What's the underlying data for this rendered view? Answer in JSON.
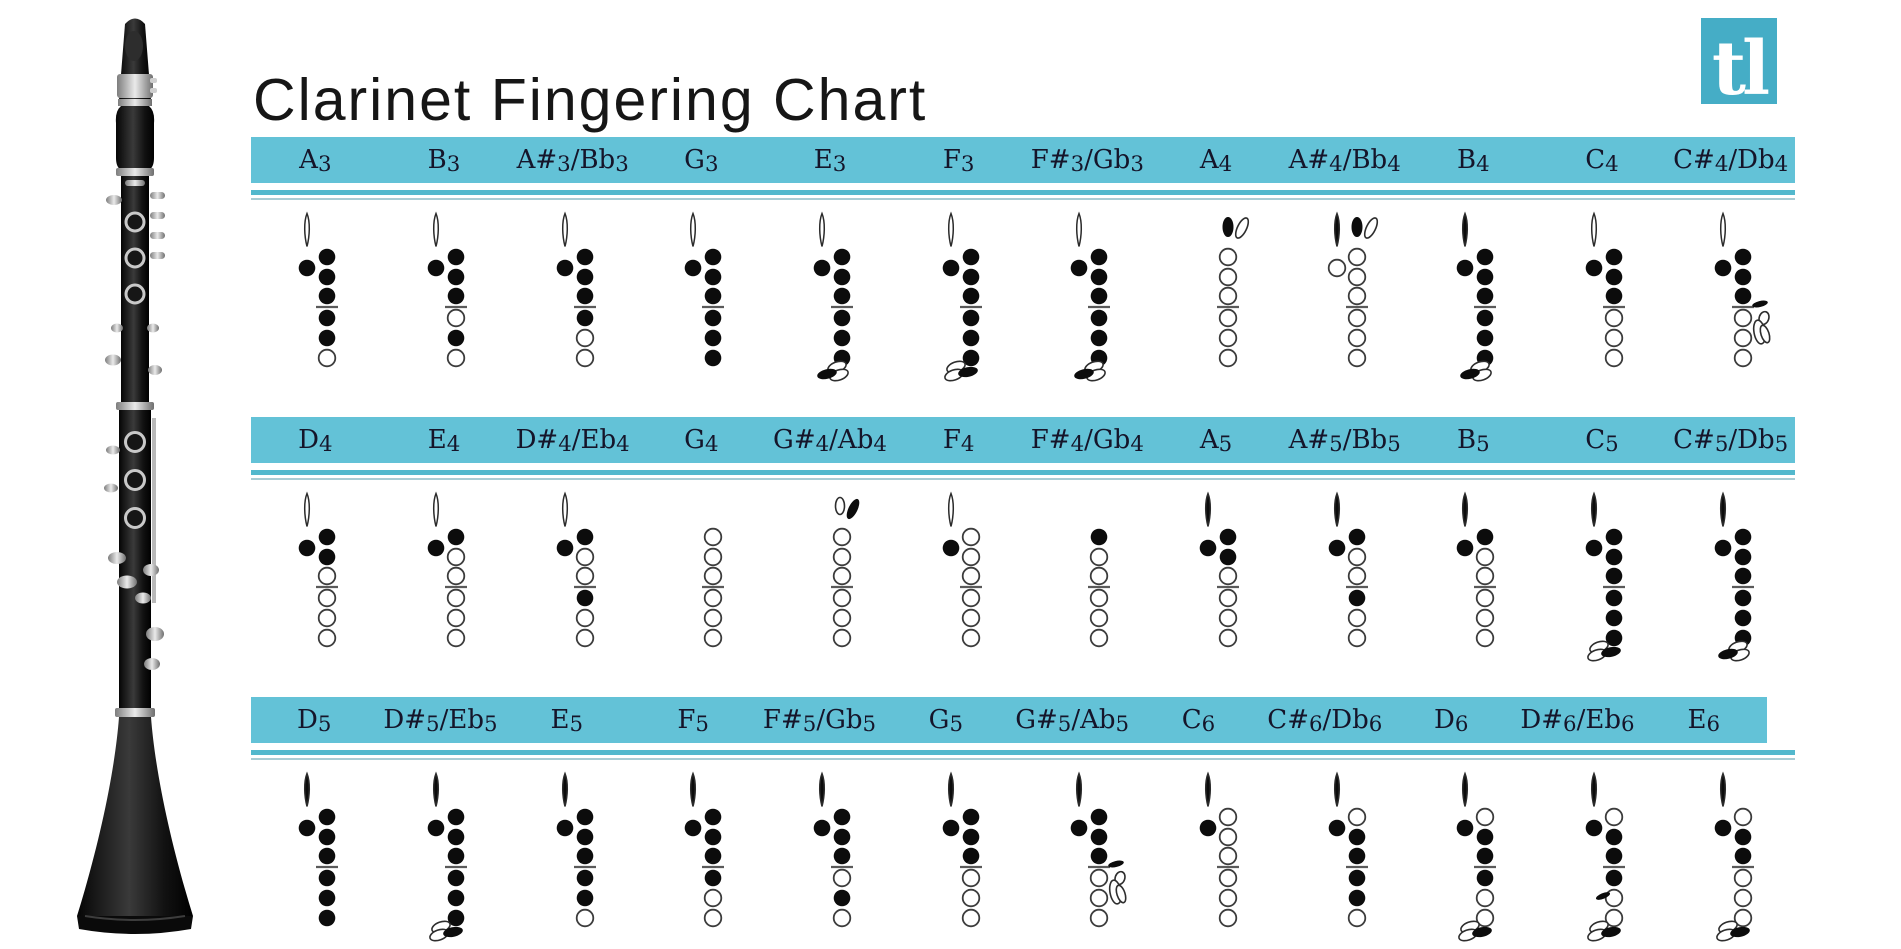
{
  "page": {
    "title": "Clarinet Fingering Chart",
    "logo_text": "tl"
  },
  "colors": {
    "bar": "#63c2d7",
    "rule_primary": "#52b8cd",
    "rule_secondary": "#a9ccd4",
    "logo_bg": "#45adc6",
    "label_text": "#15152a",
    "hole_filled": "#0c0c0c",
    "hole_stroke": "#3c3c3c",
    "title_text": "#161616"
  },
  "chart_data": {
    "type": "table",
    "title": "Clarinet Fingering Chart",
    "legend_note": "Each diagram: reg = register key (teardrop), thumb = thumb hole (left circle), akey/gsharp = throat A and G# keys, holes = six tone holes split 3|3 by a line ('f' = closed/filled, 'o' = open), sliver3/sliver5 = small pressed side key, fork = open side-key cluster, pinky = bottom pinky-key cluster with filled lobe on given side",
    "rows": [
      {
        "name": "row-1",
        "notes": [
          {
            "label": "A3",
            "reg": "open",
            "thumb": "filled",
            "holes": [
              "f",
              "f",
              "f",
              "f",
              "f",
              "o"
            ]
          },
          {
            "label": "B3",
            "reg": "open",
            "thumb": "filled",
            "holes": [
              "f",
              "f",
              "f",
              "o",
              "f",
              "o"
            ]
          },
          {
            "label": "A#3/Bb3",
            "reg": "open",
            "thumb": "filled",
            "holes": [
              "f",
              "f",
              "f",
              "f",
              "o",
              "o"
            ]
          },
          {
            "label": "G3",
            "reg": "open",
            "thumb": "filled",
            "holes": [
              "f",
              "f",
              "f",
              "f",
              "f",
              "f"
            ]
          },
          {
            "label": "E3",
            "reg": "open",
            "thumb": "filled",
            "holes": [
              "f",
              "f",
              "f",
              "f",
              "f",
              "f"
            ],
            "pinky": "left"
          },
          {
            "label": "F3",
            "reg": "open",
            "thumb": "filled",
            "holes": [
              "f",
              "f",
              "f",
              "f",
              "f",
              "f"
            ],
            "pinky": "right"
          },
          {
            "label": "F#3/Gb3",
            "reg": "open",
            "thumb": "filled",
            "holes": [
              "f",
              "f",
              "f",
              "f",
              "f",
              "f"
            ],
            "pinky": "left"
          },
          {
            "label": "A4",
            "akey": "filled",
            "gsharp": "open",
            "holes": [
              "o",
              "o",
              "o",
              "o",
              "o",
              "o"
            ]
          },
          {
            "label": "A#4/Bb4",
            "reg": "filled",
            "akey": "filled",
            "gsharp": "open",
            "thumb": "open",
            "holes": [
              "o",
              "o",
              "o",
              "o",
              "o",
              "o"
            ]
          },
          {
            "label": "B4",
            "reg": "filled",
            "thumb": "filled",
            "holes": [
              "f",
              "f",
              "f",
              "f",
              "f",
              "f"
            ],
            "pinky": "left"
          },
          {
            "label": "C4",
            "reg": "open",
            "thumb": "filled",
            "holes": [
              "f",
              "f",
              "f",
              "o",
              "o",
              "o"
            ]
          },
          {
            "label": "C#4/Db4",
            "reg": "open",
            "thumb": "filled",
            "holes": [
              "f",
              "f",
              "f",
              "o",
              "o",
              "o"
            ],
            "sliver3": true,
            "fork": true
          }
        ]
      },
      {
        "name": "row-2",
        "notes": [
          {
            "label": "D4",
            "reg": "open",
            "thumb": "filled",
            "holes": [
              "f",
              "f",
              "o",
              "o",
              "o",
              "o"
            ]
          },
          {
            "label": "E4",
            "reg": "open",
            "thumb": "filled",
            "holes": [
              "f",
              "o",
              "o",
              "o",
              "o",
              "o"
            ]
          },
          {
            "label": "D#4/Eb4",
            "reg": "open",
            "thumb": "filled",
            "holes": [
              "f",
              "o",
              "o",
              "f",
              "o",
              "o"
            ]
          },
          {
            "label": "G4",
            "holes": [
              "o",
              "o",
              "o",
              "o",
              "o",
              "o"
            ]
          },
          {
            "label": "G#4/Ab4",
            "akey": "open",
            "gsharp": "filled",
            "holes": [
              "o",
              "o",
              "o",
              "o",
              "o",
              "o"
            ]
          },
          {
            "label": "F4",
            "reg": "open",
            "thumb": "filled",
            "holes": [
              "o",
              "o",
              "o",
              "o",
              "o",
              "o"
            ]
          },
          {
            "label": "F#4/Gb4",
            "holes": [
              "f",
              "o",
              "o",
              "o",
              "o",
              "o"
            ]
          },
          {
            "label": "A5",
            "reg": "filled",
            "thumb": "filled",
            "holes": [
              "f",
              "f",
              "o",
              "o",
              "o",
              "o"
            ]
          },
          {
            "label": "A#5/Bb5",
            "reg": "filled",
            "thumb": "filled",
            "holes": [
              "f",
              "o",
              "o",
              "f",
              "o",
              "o"
            ]
          },
          {
            "label": "B5",
            "reg": "filled",
            "thumb": "filled",
            "holes": [
              "f",
              "o",
              "o",
              "o",
              "o",
              "o"
            ]
          },
          {
            "label": "C5",
            "reg": "filled",
            "thumb": "filled",
            "holes": [
              "f",
              "f",
              "f",
              "f",
              "f",
              "f"
            ],
            "pinky": "right"
          },
          {
            "label": "C#5/Db5",
            "reg": "filled",
            "thumb": "filled",
            "holes": [
              "f",
              "f",
              "f",
              "f",
              "f",
              "f"
            ],
            "pinky": "left"
          }
        ]
      },
      {
        "name": "row-3",
        "notes": [
          {
            "label": "D5",
            "reg": "filled",
            "thumb": "filled",
            "holes": [
              "f",
              "f",
              "f",
              "f",
              "f",
              "f"
            ]
          },
          {
            "label": "D#5/Eb5",
            "reg": "filled",
            "thumb": "filled",
            "holes": [
              "f",
              "f",
              "f",
              "f",
              "f",
              "f"
            ],
            "pinky": "right"
          },
          {
            "label": "E5",
            "reg": "filled",
            "thumb": "filled",
            "holes": [
              "f",
              "f",
              "f",
              "f",
              "f",
              "o"
            ]
          },
          {
            "label": "F5",
            "reg": "filled",
            "thumb": "filled",
            "holes": [
              "f",
              "f",
              "f",
              "f",
              "o",
              "o"
            ]
          },
          {
            "label": "F#5/Gb5",
            "reg": "filled",
            "thumb": "filled",
            "holes": [
              "f",
              "f",
              "f",
              "o",
              "f",
              "o"
            ]
          },
          {
            "label": "G5",
            "reg": "filled",
            "thumb": "filled",
            "holes": [
              "f",
              "f",
              "f",
              "o",
              "o",
              "o"
            ]
          },
          {
            "label": "G#5/Ab5",
            "reg": "filled",
            "thumb": "filled",
            "holes": [
              "f",
              "f",
              "f",
              "o",
              "o",
              "o"
            ],
            "sliver3": true,
            "fork": true
          },
          {
            "label": "C6",
            "reg": "filled",
            "thumb": "filled",
            "holes": [
              "o",
              "o",
              "o",
              "o",
              "o",
              "o"
            ]
          },
          {
            "label": "C#6/Db6",
            "reg": "filled",
            "thumb": "filled",
            "holes": [
              "o",
              "f",
              "f",
              "f",
              "f",
              "o"
            ]
          },
          {
            "label": "D6",
            "reg": "filled",
            "thumb": "filled",
            "holes": [
              "o",
              "f",
              "f",
              "f",
              "o",
              "o"
            ],
            "pinky": "right"
          },
          {
            "label": "D#6/Eb6",
            "reg": "filled",
            "thumb": "filled",
            "holes": [
              "o",
              "f",
              "f",
              "f",
              "o",
              "o"
            ],
            "sliver5": true,
            "pinky": "right"
          },
          {
            "label": "E6",
            "reg": "filled",
            "thumb": "filled",
            "holes": [
              "o",
              "f",
              "f",
              "o",
              "o",
              "o"
            ],
            "pinky": "right"
          }
        ]
      }
    ]
  }
}
